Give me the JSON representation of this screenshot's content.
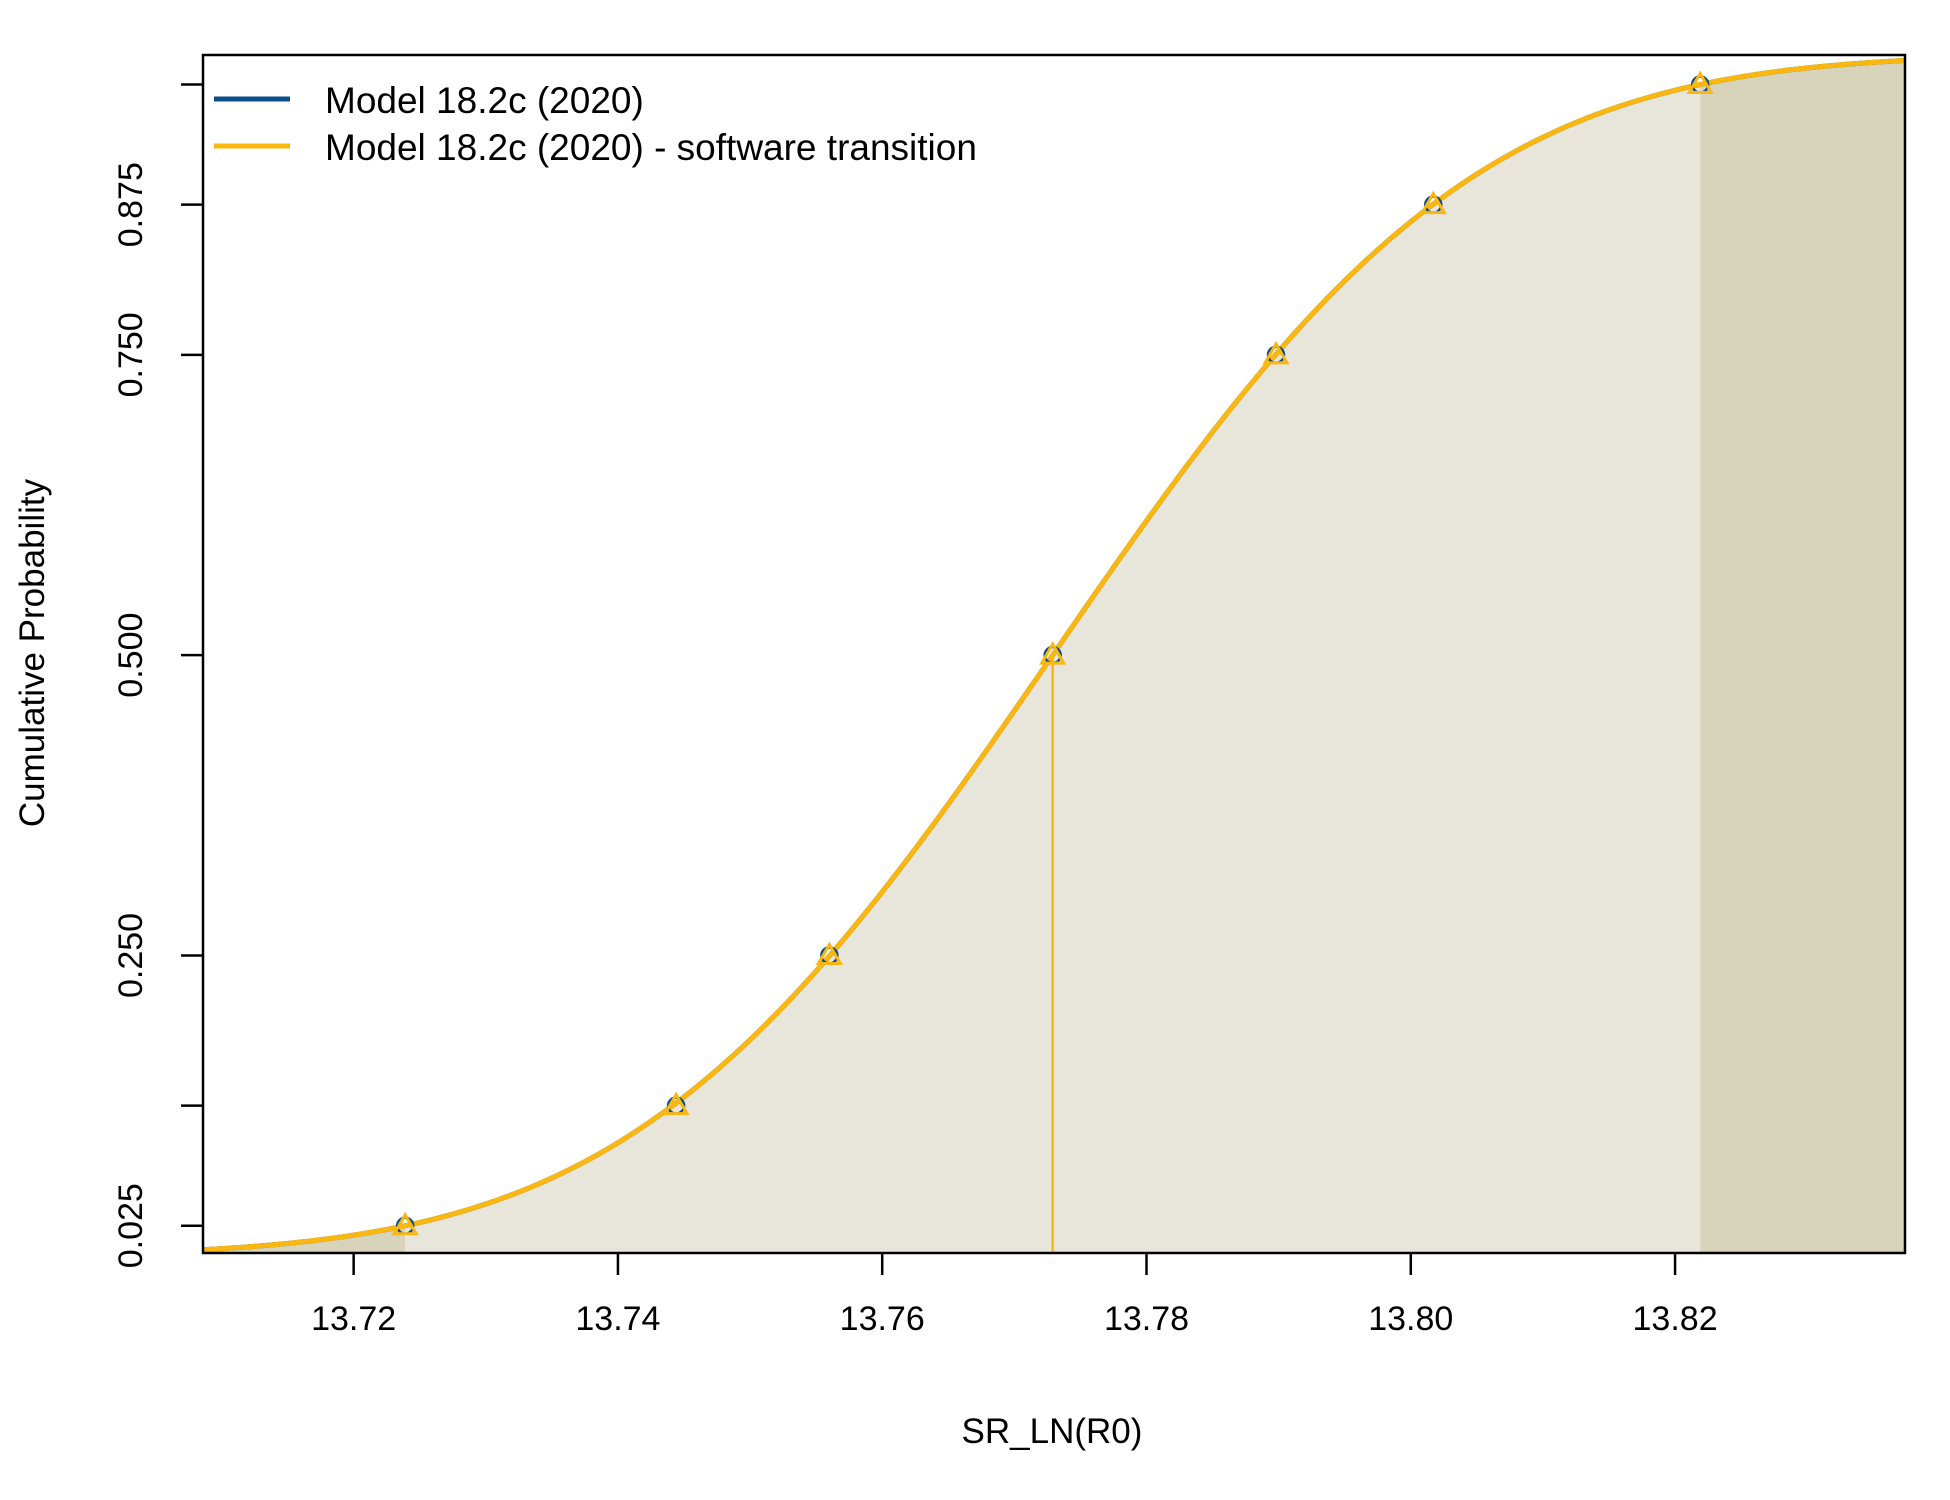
{
  "chart_data": {
    "type": "line",
    "xlabel": "SR_LN(R0)",
    "ylabel": "Cumulative Probability",
    "xlim": [
      13.7086,
      13.8374
    ],
    "ylim": [
      0.0023,
      0.9996
    ],
    "x_ticks": [
      13.72,
      13.74,
      13.76,
      13.78,
      13.8,
      13.82
    ],
    "x_tick_labels": [
      "13.72",
      "13.74",
      "13.76",
      "13.78",
      "13.80",
      "13.82"
    ],
    "y_ticks": [
      0.025,
      0.125,
      0.25,
      0.5,
      0.75,
      0.875,
      0.975
    ],
    "y_tick_labels": [
      "0.025",
      "",
      "0.250",
      "0.500",
      "0.750",
      "0.875",
      ""
    ],
    "grid": false,
    "legend_position": "top-left",
    "distribution": {
      "kind": "normal-cdf",
      "mean": 13.7729,
      "sd": 0.025
    },
    "shaded_interval": {
      "lower": 13.7239,
      "upper": 13.8219
    },
    "median_line_x": 13.7729,
    "series": [
      {
        "name": "Model 18.2c (2020)",
        "color": "#0E4C8A",
        "marker": "circle",
        "points": [
          {
            "x": 13.7239,
            "y": 0.025
          },
          {
            "x": 13.7444,
            "y": 0.125
          },
          {
            "x": 13.756,
            "y": 0.25
          },
          {
            "x": 13.7729,
            "y": 0.5
          },
          {
            "x": 13.7898,
            "y": 0.75
          },
          {
            "x": 13.8017,
            "y": 0.875
          },
          {
            "x": 13.8219,
            "y": 0.975
          }
        ]
      },
      {
        "name": "Model 18.2c (2020) - software transition",
        "color": "#F9B710",
        "marker": "triangle",
        "points": [
          {
            "x": 13.7239,
            "y": 0.025
          },
          {
            "x": 13.7444,
            "y": 0.125
          },
          {
            "x": 13.756,
            "y": 0.25
          },
          {
            "x": 13.7729,
            "y": 0.5
          },
          {
            "x": 13.7898,
            "y": 0.75
          },
          {
            "x": 13.8017,
            "y": 0.875
          },
          {
            "x": 13.8219,
            "y": 0.975
          }
        ]
      }
    ],
    "colors": {
      "inner_fill": "#E8E5DA",
      "tail_fill": "#D8D4BC",
      "axis": "#000000"
    }
  }
}
